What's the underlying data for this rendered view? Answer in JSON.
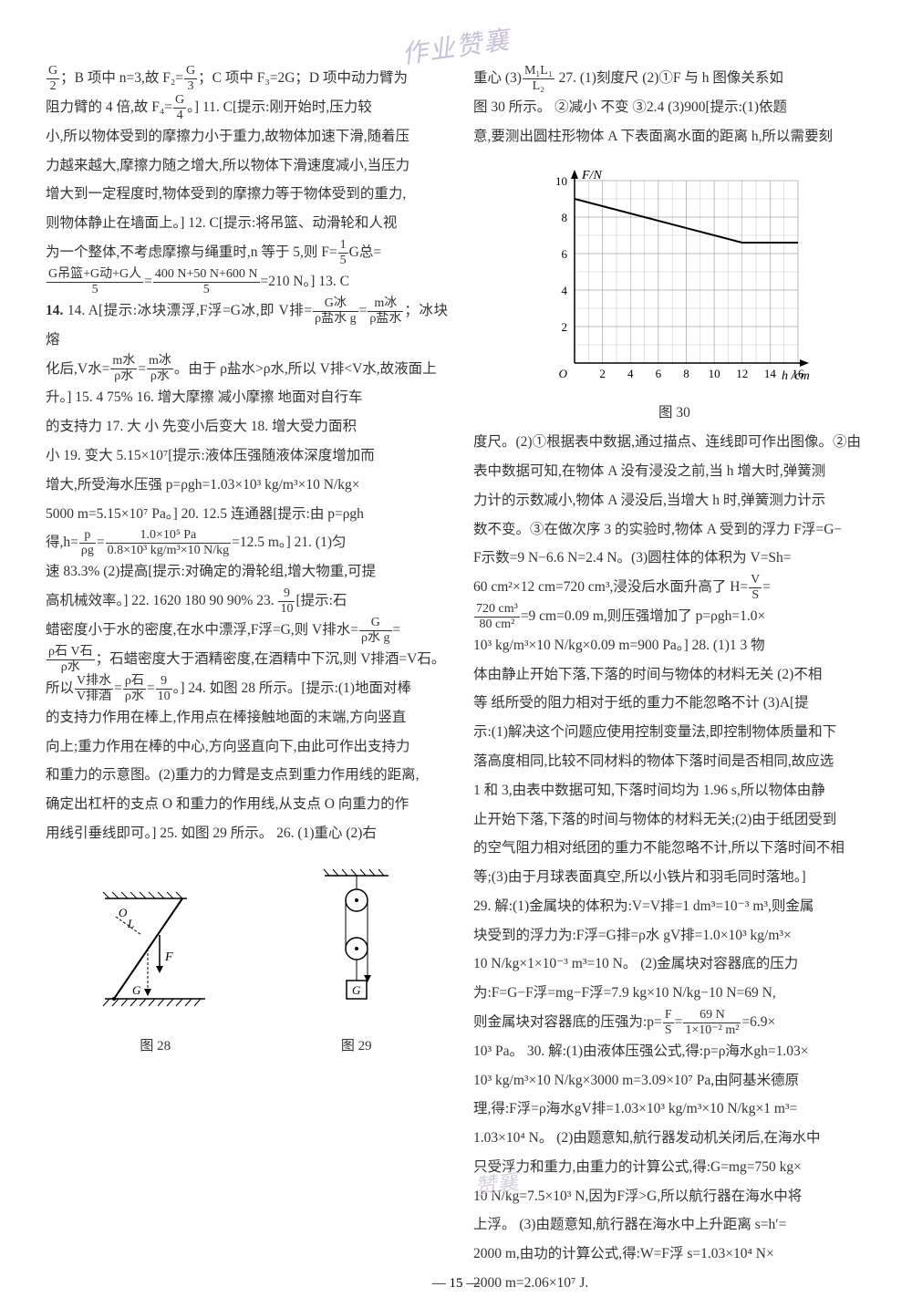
{
  "watermark_top": "作业赞襄",
  "watermark_bottom": "赞襄",
  "page_number": "— 15 —",
  "left_col": {
    "l1": "；B 项中 n=3,故 F₂=",
    "l1b": "；C 项中 F₃=2G；D 项中动力臂为",
    "l2": "阻力臂的 4 倍,故 F₄=",
    "l2b": "。] 11. C[提示:刚开始时,压力较",
    "l3": "小,所以物体受到的摩擦力小于重力,故物体加速下滑,随着压",
    "l4": "力越来越大,摩擦力随之增大,所以物体下滑速度减小,当压力",
    "l5": "增大到一定程度时,物体受到的摩擦力等于物体受到的重力,",
    "l6": "则物体静止在墙面上。] 12. C[提示:将吊篮、动滑轮和人视",
    "l7": "为一个整体,不考虑摩擦与绳重时,n 等于 5,则 F=",
    "l7b": "G总=",
    "l8a": "G吊篮+G动+G人",
    "l8b": "400 N+50 N+600 N",
    "l8c": "=210 N。] 13. C",
    "l9": "14. A[提示:冰块漂浮,F浮=G冰,即 V排=",
    "l9b": "；冰块熔",
    "l10": "化后,V水=",
    "l10b": "。由于 ρ盐水>ρ水,所以 V排<V水,故液面上",
    "l11": "升。] 15. 4 75% 16. 增大摩擦 减小摩擦 地面对自行车",
    "l12": "的支持力 17. 大 小 先变小后变大 18. 增大受力面积",
    "l13": "小 19. 变大 5.15×10⁷[提示:液体压强随液体深度增加而",
    "l14": "增大,所受海水压强 p=ρgh=1.03×10³ kg/m³×10 N/kg×",
    "l15": "5000 m=5.15×10⁷ Pa。] 20. 12.5 连通器[提示:由 p=ρgh",
    "l16": "得,h=",
    "l16b": "=12.5 m。] 21. (1)匀",
    "l17": "速 83.3% (2)提高[提示:对确定的滑轮组,增大物重,可提",
    "l18": "高机械效率。] 22. 1620 180 90 90% 23.",
    "l18b": "[提示:石",
    "l19": "蜡密度小于水的密度,在水中漂浮,F浮=G,则 V排水=",
    "l20": "；石蜡密度大于酒精密度,在酒精中下沉,则 V排酒=V石。",
    "l21": "所以",
    "l21b": "。] 24. 如图 28 所示。[提示:(1)地面对棒",
    "l22": "的支持力作用在棒上,作用点在棒接触地面的末端,方向竖直",
    "l23": "向上;重力作用在棒的中心,方向竖直向下,由此可作出支持力",
    "l24": "和重力的示意图。(2)重力的力臂是支点到重力作用线的距离,",
    "l25": "确定出杠杆的支点 O 和重力的作用线,从支点 O 向重力的作",
    "l26": "用线引垂线即可。] 25. 如图 29 所示。 26. (1)重心 (2)右",
    "fig28_label": "图 28",
    "fig29_label": "图 29"
  },
  "right_col": {
    "r1": "重心 (3)",
    "r1b": " 27. (1)刻度尺 (2)①F 与 h 图像关系如",
    "r2": "图 30 所示。 ②减小 不变 ③2.4 (3)900[提示:(1)依题",
    "r3": "意,要测出圆柱形物体 A 下表面离水面的距离 h,所以需要刻",
    "chart": {
      "y_label": "F/N",
      "x_label": "h /cm",
      "y_ticks": [
        2,
        4,
        6,
        8,
        10
      ],
      "x_ticks": [
        2,
        4,
        6,
        8,
        10,
        12,
        14,
        16
      ],
      "y_max": 10,
      "x_max": 16,
      "line_points": [
        [
          0,
          9
        ],
        [
          12,
          6.6
        ],
        [
          16,
          6.6
        ]
      ],
      "grid_color": "#999999",
      "line_color": "#000000",
      "bg_color": "#ffffff"
    },
    "fig30_label": "图 30",
    "r4": "度尺。(2)①根据表中数据,通过描点、连线即可作出图像。②由",
    "r5": "表中数据可知,在物体 A 没有浸没之前,当 h 增大时,弹簧测",
    "r6": "力计的示数减小,物体 A 浸没后,当增大 h 时,弹簧测力计示",
    "r7": "数不变。③在做次序 3 的实验时,物体 A 受到的浮力 F浮=G−",
    "r8": "F示数=9 N−6.6 N=2.4 N。(3)圆柱体的体积为 V=Sh=",
    "r9": "60 cm²×12 cm=720 cm³,浸没后水面升高了 H=",
    "r10": "=9 cm=0.09 m,则压强增加了 p=ρgh=1.0×",
    "r11": "10³ kg/m³×10 N/kg×0.09 m=900 Pa。] 28. (1)1 3 物",
    "r12": "体由静止开始下落,下落的时间与物体的材料无关 (2)不相",
    "r13": "等 纸所受的阻力相对于纸的重力不能忽略不计 (3)A[提",
    "r14": "示:(1)解决这个问题应使用控制变量法,即控制物体质量和下",
    "r15": "落高度相同,比较不同材料的物体下落时间是否相同,故应选",
    "r16": "1 和 3,由表中数据可知,下落时间均为 1.96 s,所以物体由静",
    "r17": "止开始下落,下落的时间与物体的材料无关;(2)由于纸团受到",
    "r18": "的空气阻力相对纸团的重力不能忽略不计,所以下落时间不相",
    "r19": "等;(3)由于月球表面真空,所以小铁片和羽毛同时落地。]",
    "r20": "29. 解:(1)金属块的体积为:V=V排=1 dm³=10⁻³ m³,则金属",
    "r21": "块受到的浮力为:F浮=G排=ρ水 gV排=1.0×10³ kg/m³×",
    "r22": "10 N/kg×1×10⁻³ m³=10 N。 (2)金属块对容器底的压力",
    "r23": "为:F=G−F浮=mg−F浮=7.9 kg×10 N/kg−10 N=69 N,",
    "r24": "则金属块对容器底的压强为:p=",
    "r24b": "=6.9×",
    "r25": "10³ Pa。 30. 解:(1)由液体压强公式,得:p=ρ海水gh=1.03×",
    "r26": "10³ kg/m³×10 N/kg×3000 m=3.09×10⁷ Pa,由阿基米德原",
    "r27": "理,得:F浮=ρ海水gV排=1.03×10³ kg/m³×10 N/kg×1 m³=",
    "r28": "1.03×10⁴ N。 (2)由题意知,航行器发动机关闭后,在海水中",
    "r29": "只受浮力和重力,由重力的计算公式,得:G=mg=750 kg×",
    "r30": "10 N/kg=7.5×10³ N,因为F浮>G,所以航行器在海水中将",
    "r31": "上浮。 (3)由题意知,航行器在海水中上升距离 s=h′=",
    "r32": "2000 m,由功的计算公式,得:W=F浮 s=1.03×10⁴ N×",
    "r33": "2000 m=2.06×10⁷ J."
  },
  "fractions": {
    "g2": {
      "num": "G",
      "den": "2"
    },
    "g3": {
      "num": "G",
      "den": "3"
    },
    "g4": {
      "num": "G",
      "den": "4"
    },
    "onefifth": {
      "num": "1",
      "den": "5"
    },
    "five": {
      "num": "",
      "den": "5"
    },
    "gbing": {
      "num": "G冰",
      "den": "ρ盐水 g"
    },
    "mbing": {
      "num": "m冰",
      "den": "ρ盐水"
    },
    "mshui": {
      "num": "m水",
      "den": "ρ水"
    },
    "mbing2": {
      "num": "m冰",
      "den": "ρ水"
    },
    "p_rg": {
      "num": "p",
      "den": "ρg"
    },
    "p_val": {
      "num": "1.0×10⁵ Pa",
      "den": "0.8×10³ kg/m³×10 N/kg"
    },
    "nine_ten": {
      "num": "9",
      "den": "10"
    },
    "g_rhog": {
      "num": "G",
      "den": "ρ水 g"
    },
    "rho_ratio": {
      "num": "ρ石 V石",
      "den": "ρ水"
    },
    "v_ratio": {
      "num": "V排水",
      "den": "V排酒"
    },
    "rho_ratio2": {
      "num": "ρ石",
      "den": "ρ水"
    },
    "ml": {
      "num": "M₁L₁",
      "den": "L₂"
    },
    "vs": {
      "num": "V",
      "den": "S"
    },
    "vol": {
      "num": "720 cm³",
      "den": "80 cm²"
    },
    "fs": {
      "num": "F",
      "den": "S"
    },
    "fs_val": {
      "num": "69 N",
      "den": "1×10⁻² m²"
    }
  }
}
